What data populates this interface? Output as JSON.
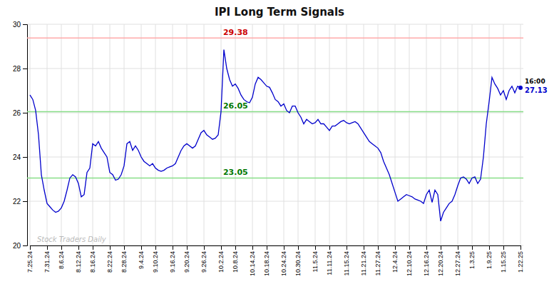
{
  "chart_data": {
    "type": "line",
    "title": "IPI Long Term Signals",
    "categories": [
      "7.25.24",
      null,
      null,
      null,
      null,
      null,
      "7.31.24",
      null,
      null,
      null,
      null,
      "8.6.24",
      null,
      null,
      null,
      null,
      null,
      "8.12.24",
      null,
      null,
      null,
      null,
      "8.16.24",
      null,
      null,
      null,
      null,
      null,
      "8.22.24",
      null,
      null,
      null,
      null,
      "8.28.24",
      null,
      null,
      null,
      null,
      null,
      "9.4.24",
      null,
      null,
      null,
      null,
      "9.10.24",
      null,
      null,
      null,
      null,
      null,
      "9.16.24",
      null,
      null,
      null,
      null,
      "9.20.24",
      null,
      null,
      null,
      null,
      null,
      "9.26.24",
      null,
      null,
      null,
      null,
      null,
      "10.2.24",
      null,
      null,
      null,
      null,
      "10.8.24",
      null,
      null,
      null,
      null,
      null,
      "10.14.24",
      null,
      null,
      null,
      null,
      "10.18.24",
      null,
      null,
      null,
      null,
      null,
      "10.24.24",
      null,
      null,
      null,
      null,
      "10.30.24",
      null,
      null,
      null,
      null,
      null,
      "11.5.24",
      null,
      null,
      null,
      null,
      "11.11.24",
      null,
      null,
      null,
      null,
      null,
      "11.15.24",
      null,
      null,
      null,
      null,
      null,
      "11.21.24",
      null,
      null,
      null,
      null,
      "11.27.24",
      null,
      null,
      null,
      null,
      null,
      "12.4.24",
      null,
      null,
      null,
      null,
      "12.10.24",
      null,
      null,
      null,
      null,
      null,
      "12.16.24",
      null,
      null,
      null,
      null,
      "12.20.24",
      null,
      null,
      null,
      null,
      null,
      "12.27.24",
      null,
      null,
      null,
      null,
      "1.3.25",
      null,
      null,
      null,
      null,
      null,
      "1.9.25",
      null,
      null,
      null,
      null,
      "1.15.25",
      null,
      null,
      null,
      null,
      null,
      "1.22.25"
    ],
    "values": [
      26.8,
      26.6,
      26.1,
      25.0,
      23.2,
      22.5,
      21.9,
      21.75,
      21.6,
      21.5,
      21.55,
      21.7,
      22.0,
      22.5,
      23.05,
      23.2,
      23.1,
      22.8,
      22.2,
      22.3,
      23.3,
      23.5,
      24.6,
      24.5,
      24.7,
      24.4,
      24.2,
      24.0,
      23.3,
      23.2,
      22.95,
      23.0,
      23.2,
      23.6,
      24.6,
      24.7,
      24.3,
      24.5,
      24.3,
      24.0,
      23.8,
      23.7,
      23.6,
      23.7,
      23.5,
      23.4,
      23.35,
      23.4,
      23.5,
      23.55,
      23.6,
      23.7,
      24.0,
      24.3,
      24.5,
      24.6,
      24.5,
      24.4,
      24.5,
      24.8,
      25.1,
      25.2,
      25.0,
      24.9,
      24.8,
      24.85,
      25.0,
      26.05,
      28.85,
      28.0,
      27.5,
      27.2,
      27.3,
      27.1,
      26.8,
      26.6,
      26.5,
      26.45,
      26.7,
      27.3,
      27.6,
      27.5,
      27.35,
      27.2,
      27.15,
      26.9,
      26.6,
      26.5,
      26.3,
      26.4,
      26.1,
      26.0,
      26.3,
      26.3,
      26.0,
      25.8,
      25.5,
      25.7,
      25.6,
      25.5,
      25.55,
      25.7,
      25.5,
      25.5,
      25.35,
      25.2,
      25.4,
      25.4,
      25.5,
      25.6,
      25.65,
      25.55,
      25.5,
      25.55,
      25.6,
      25.5,
      25.3,
      25.1,
      24.9,
      24.7,
      24.6,
      24.5,
      24.4,
      24.2,
      23.8,
      23.5,
      23.2,
      22.8,
      22.4,
      22.0,
      22.1,
      22.2,
      22.3,
      22.25,
      22.2,
      22.1,
      22.05,
      22.0,
      21.9,
      22.3,
      22.5,
      21.95,
      22.5,
      22.3,
      21.1,
      21.5,
      21.7,
      21.9,
      22.0,
      22.3,
      22.7,
      23.05,
      23.1,
      23.0,
      22.8,
      23.05,
      23.1,
      22.8,
      23.0,
      24.0,
      25.5,
      26.5,
      27.6,
      27.3,
      27.1,
      26.8,
      27.0,
      26.6,
      27.0,
      27.2,
      26.9,
      27.2,
      27.13
    ],
    "color": "#0000cc",
    "ylim": [
      20,
      30
    ],
    "yticks": [
      20,
      22,
      24,
      26,
      28,
      30
    ],
    "grid": true,
    "hlines": [
      {
        "value": 29.38,
        "color": "#ffaaaa",
        "text_color": "#cc0000"
      },
      {
        "value": 26.05,
        "color": "#88dd88",
        "text_color": "#007700"
      },
      {
        "value": 23.05,
        "color": "#88dd88",
        "text_color": "#007700"
      }
    ],
    "last_label": "16:00",
    "last_value": 27.13,
    "watermark": "Stock Traders Daily"
  }
}
